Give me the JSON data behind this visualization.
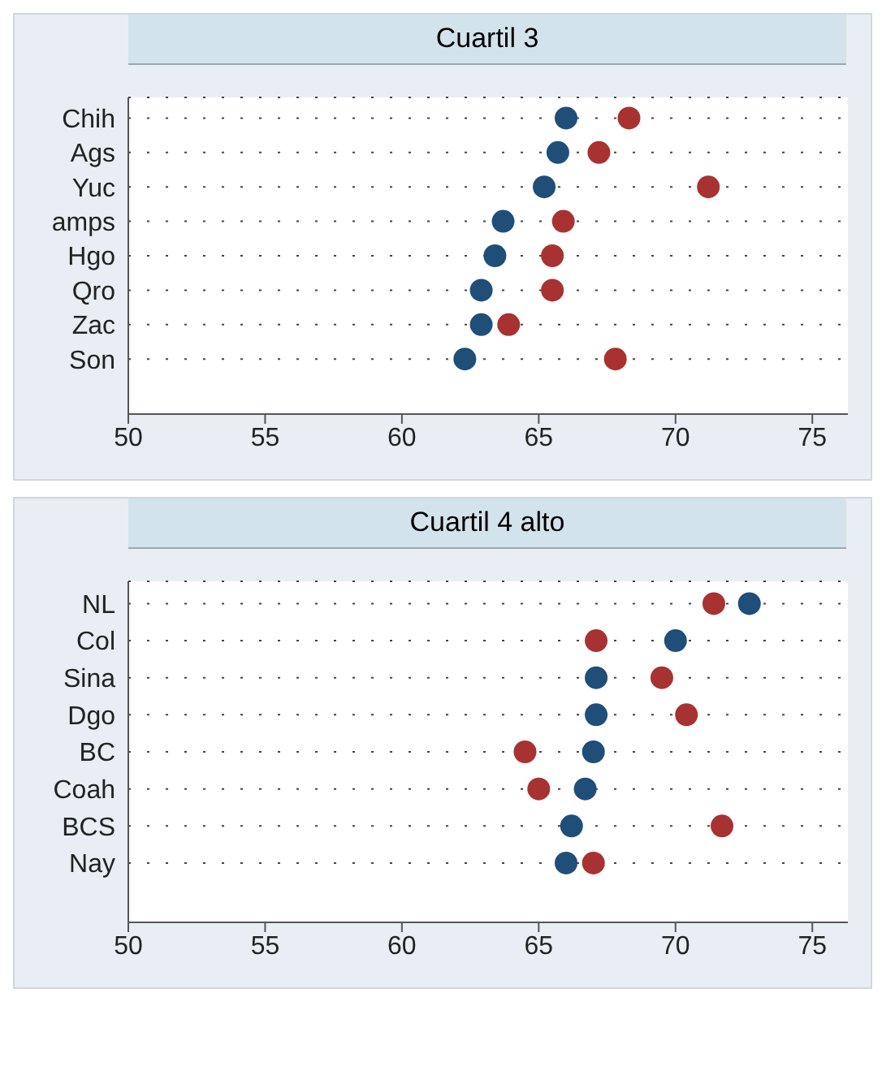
{
  "chart_data": [
    {
      "type": "scatter",
      "title": "Cuartil 3",
      "categories": [
        "Chih",
        "Ags",
        "Yuc",
        "amps",
        "Hgo",
        "Qro",
        "Zac",
        "Son"
      ],
      "orientation": "horizontal",
      "xlim": [
        50,
        76.3
      ],
      "xticks": [
        50,
        55,
        60,
        65,
        70,
        75
      ],
      "grid": "y",
      "marker": "circle",
      "legend": false,
      "series": [
        {
          "color": "#1f4e79",
          "values": [
            66.0,
            65.7,
            65.2,
            63.7,
            63.4,
            62.9,
            62.9,
            62.3
          ]
        },
        {
          "color": "#a83232",
          "values": [
            68.3,
            67.2,
            71.2,
            65.9,
            65.5,
            65.5,
            63.9,
            67.8
          ]
        }
      ]
    },
    {
      "type": "scatter",
      "title": "Cuartil 4 alto",
      "categories": [
        "NL",
        "Col",
        "Sina",
        "Dgo",
        "BC",
        "Coah",
        "BCS",
        "Nay"
      ],
      "orientation": "horizontal",
      "xlim": [
        50,
        76.3
      ],
      "xticks": [
        50,
        55,
        60,
        65,
        70,
        75
      ],
      "grid": "y",
      "marker": "circle",
      "legend": false,
      "series": [
        {
          "color": "#1f4e79",
          "values": [
            72.7,
            70.0,
            67.1,
            67.1,
            67.0,
            66.7,
            66.2,
            66.0
          ]
        },
        {
          "color": "#a83232",
          "values": [
            71.4,
            67.1,
            69.5,
            70.4,
            64.5,
            65.0,
            71.7,
            67.0
          ]
        }
      ]
    }
  ]
}
